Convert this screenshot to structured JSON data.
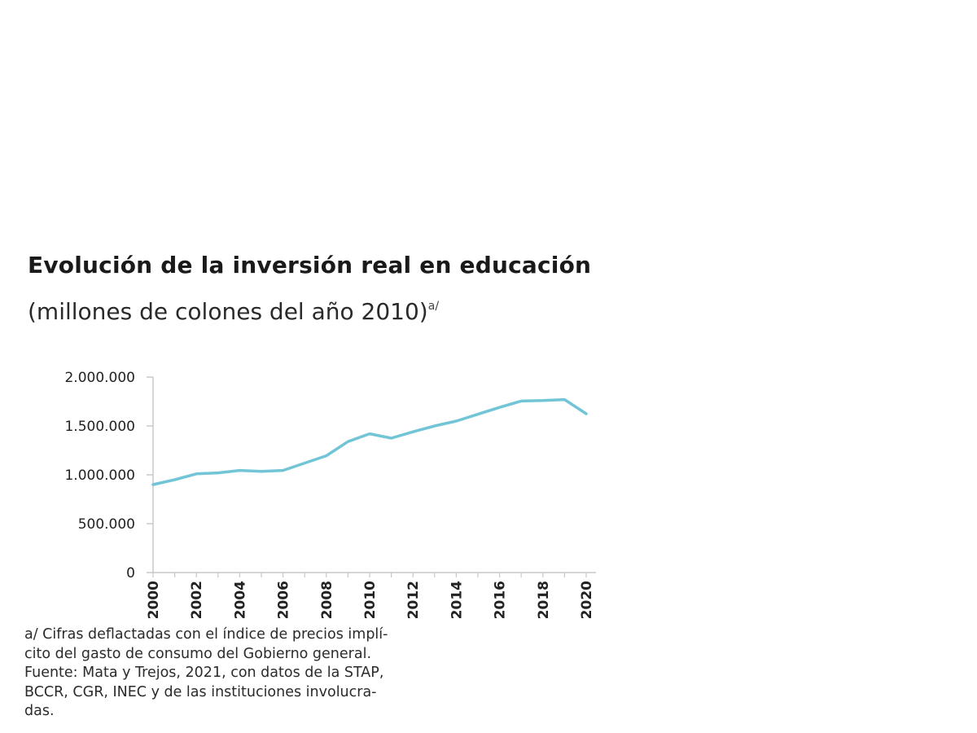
{
  "title": "Evolución de la inversión real en educación",
  "subtitle": "(millones de colones del año 2010)",
  "subtitle_note_mark": "a/",
  "notes": [
    "a/ Cifras deflactadas con el índice de precios implí-",
    "cito del gasto de consumo del Gobierno general.",
    "Fuente: Mata y Trejos, 2021, con datos de la STAP,",
    "BCCR, CGR, INEC y de las instituciones involucra-",
    "das."
  ],
  "colors": {
    "line": "#72c5d6",
    "axis": "#c8c8c8",
    "text": "#222222"
  },
  "chart_data": {
    "type": "line",
    "title": "Evolución de la inversión real en educación",
    "subtitle": "(millones de colones del año 2010)",
    "xlabel": "",
    "ylabel": "",
    "ylim": [
      0,
      2000000
    ],
    "yticks": [
      0,
      500000,
      1000000,
      1500000,
      2000000
    ],
    "ytick_labels": [
      "0",
      "500.000",
      "1.000.000",
      "1.500.000",
      "2.000.000"
    ],
    "xticks": [
      2000,
      2002,
      2004,
      2006,
      2008,
      2010,
      2012,
      2014,
      2016,
      2018,
      2020
    ],
    "xtick_labels": [
      "2000",
      "2002",
      "2004",
      "2006",
      "2008",
      "2010",
      "2012",
      "2014",
      "2016",
      "2018",
      "2020"
    ],
    "grid": false,
    "legend": "none",
    "series": [
      {
        "x": [
          2000,
          2001,
          2002,
          2003,
          2004,
          2005,
          2006,
          2007,
          2008,
          2009,
          2010,
          2011,
          2012,
          2013,
          2014,
          2015,
          2016,
          2017,
          2018,
          2019,
          2020
        ],
        "values": [
          900000,
          950000,
          1010000,
          1020000,
          1045000,
          1035000,
          1045000,
          1120000,
          1195000,
          1340000,
          1420000,
          1375000,
          1440000,
          1500000,
          1550000,
          1620000,
          1690000,
          1755000,
          1760000,
          1770000,
          1625000
        ]
      }
    ]
  }
}
